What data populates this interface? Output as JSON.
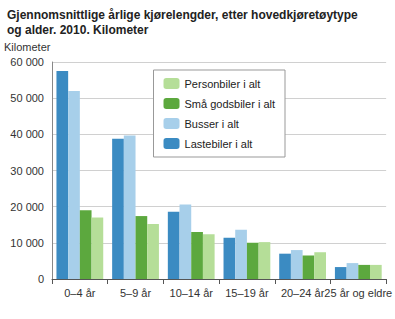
{
  "chart_data": {
    "type": "bar",
    "title": "Gjennomsnittlige årlige kjørelengder, etter hovedkjøretøytype og alder. 2010. Kilometer",
    "y_label": "Kilometer",
    "categories": [
      "0–4 år",
      "5–9 år",
      "10–14 år",
      "15–19 år",
      "20–24 år",
      "25 år og eldre"
    ],
    "series": [
      {
        "name": "Lastebiler i alt",
        "color": "#3b8bc2",
        "values": [
          57500,
          38800,
          18600,
          11400,
          7000,
          3300
        ]
      },
      {
        "name": "Busser i alt",
        "color": "#a7cfea",
        "values": [
          52000,
          39700,
          20600,
          13600,
          8000,
          4400
        ]
      },
      {
        "name": "Små godsbiler i alt",
        "color": "#5ca83e",
        "values": [
          19000,
          17400,
          13000,
          10000,
          6500,
          3900
        ]
      },
      {
        "name": "Personbiler i alt",
        "color": "#b5de98",
        "values": [
          17000,
          15200,
          12400,
          10200,
          7400,
          3900
        ]
      }
    ],
    "ylim": [
      0,
      60000
    ],
    "yticks": [
      {
        "value": 0,
        "label": "0"
      },
      {
        "value": 10000,
        "label": "10 000"
      },
      {
        "value": 20000,
        "label": "20 000"
      },
      {
        "value": 30000,
        "label": "30 000"
      },
      {
        "value": 40000,
        "label": "40 000"
      },
      {
        "value": 50000,
        "label": "50 000"
      },
      {
        "value": 60000,
        "label": "60 000"
      }
    ],
    "grid": true,
    "legend": "top-right"
  }
}
